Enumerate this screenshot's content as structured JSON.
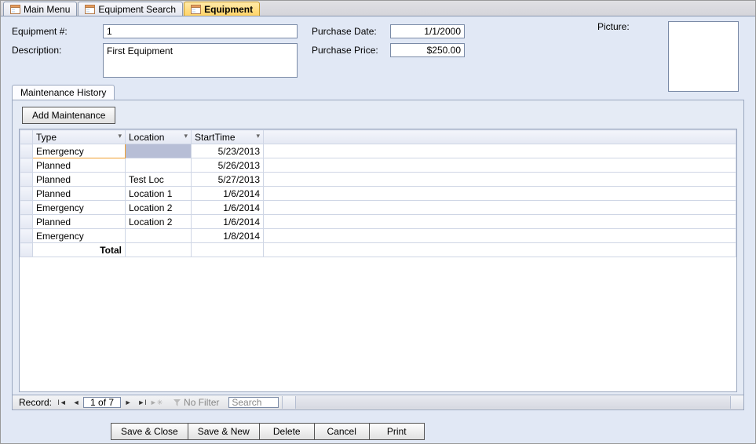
{
  "tabs": [
    {
      "label": "Main Menu",
      "active": false
    },
    {
      "label": "Equipment Search",
      "active": false
    },
    {
      "label": "Equipment",
      "active": true
    }
  ],
  "form": {
    "equipNumLabel": "Equipment #:",
    "equipNum": "1",
    "descLabel": "Description:",
    "desc": "First Equipment",
    "purchaseDateLabel": "Purchase Date:",
    "purchaseDate": "1/1/2000",
    "purchasePriceLabel": "Purchase Price:",
    "purchasePrice": "$250.00",
    "pictureLabel": "Picture:"
  },
  "subtab": {
    "title": "Maintenance History",
    "addBtn": "Add Maintenance",
    "columns": {
      "type": "Type",
      "location": "Location",
      "start": "StartTime"
    },
    "rows": [
      {
        "type": "Emergency",
        "location": "",
        "start": "5/23/2013",
        "selectedLoc": true
      },
      {
        "type": "Planned",
        "location": "",
        "start": "5/26/2013"
      },
      {
        "type": "Planned",
        "location": "Test Loc",
        "start": "5/27/2013"
      },
      {
        "type": "Planned",
        "location": "Location 1",
        "start": "1/6/2014"
      },
      {
        "type": "Emergency",
        "location": "Location 2",
        "start": "1/6/2014"
      },
      {
        "type": "Planned",
        "location": "Location 2",
        "start": "1/6/2014"
      },
      {
        "type": "Emergency",
        "location": "",
        "start": "1/8/2014"
      }
    ],
    "totalLabel": "Total"
  },
  "recnav": {
    "label": "Record:",
    "pos": "1 of 7",
    "noFilter": "No Filter",
    "searchPlaceholder": "Search"
  },
  "actions": {
    "saveClose": "Save & Close",
    "saveNew": "Save & New",
    "delete": "Delete",
    "cancel": "Cancel",
    "print": "Print"
  }
}
